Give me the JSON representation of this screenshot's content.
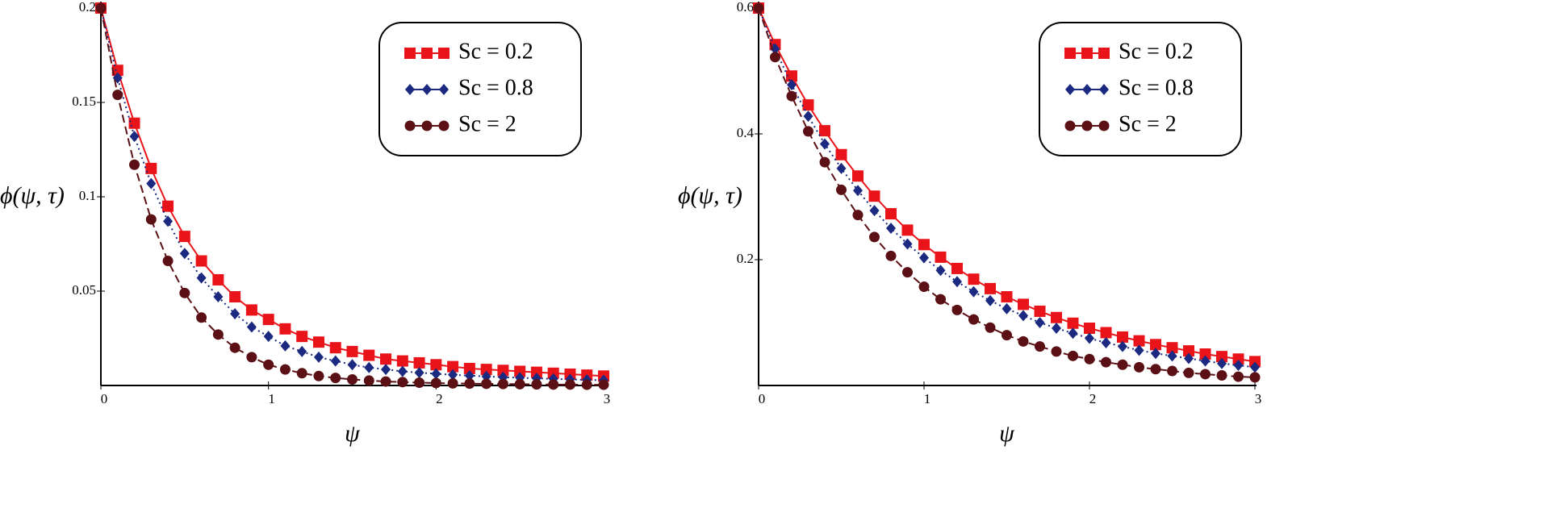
{
  "chart_data": [
    {
      "type": "line",
      "xlabel": "ψ",
      "ylabel": "ϕ(ψ, τ)",
      "xlim": [
        0,
        3
      ],
      "ylim": [
        0,
        0.2
      ],
      "xticks": [
        0,
        1,
        2,
        3
      ],
      "yticks": [
        0.05,
        0.1,
        0.15,
        0.2
      ],
      "legend": "upper right",
      "x": [
        0,
        0.1,
        0.2,
        0.3,
        0.4,
        0.5,
        0.6,
        0.7,
        0.8,
        0.9,
        1,
        1.1,
        1.2,
        1.3,
        1.4,
        1.5,
        1.6,
        1.7,
        1.8,
        1.9,
        2,
        2.1,
        2.2,
        2.3,
        2.4,
        2.5,
        2.6,
        2.7,
        2.8,
        2.9,
        3
      ],
      "series": [
        {
          "name": "Sc = 0.2",
          "color": "#e8141a",
          "marker": "square",
          "line_style": "solid",
          "values": [
            0.2,
            0.167,
            0.139,
            0.115,
            0.095,
            0.079,
            0.066,
            0.056,
            0.047,
            0.04,
            0.035,
            0.03,
            0.026,
            0.023,
            0.02,
            0.018,
            0.016,
            0.014,
            0.013,
            0.012,
            0.011,
            0.01,
            0.009,
            0.0085,
            0.008,
            0.0075,
            0.007,
            0.0065,
            0.006,
            0.0055,
            0.005
          ]
        },
        {
          "name": "Sc = 0.8",
          "color": "#1b2a80",
          "marker": "diamond",
          "line_style": "dotted",
          "values": [
            0.2,
            0.163,
            0.132,
            0.107,
            0.087,
            0.07,
            0.057,
            0.047,
            0.038,
            0.031,
            0.026,
            0.021,
            0.018,
            0.015,
            0.013,
            0.011,
            0.0095,
            0.0085,
            0.0075,
            0.0068,
            0.0062,
            0.0057,
            0.0052,
            0.0048,
            0.0044,
            0.0041,
            0.0038,
            0.0035,
            0.0032,
            0.003,
            0.0028
          ]
        },
        {
          "name": "Sc = 2",
          "color": "#5a1014",
          "marker": "circle",
          "line_style": "dashed",
          "values": [
            0.2,
            0.154,
            0.117,
            0.088,
            0.066,
            0.049,
            0.036,
            0.027,
            0.02,
            0.015,
            0.011,
            0.0085,
            0.0065,
            0.005,
            0.004,
            0.0032,
            0.0026,
            0.0021,
            0.0018,
            0.0015,
            0.0013,
            0.0011,
            0.001,
            0.0009,
            0.0008,
            0.0007,
            0.0006,
            0.0005,
            0.0005,
            0.0004,
            0.0004
          ]
        }
      ]
    },
    {
      "type": "line",
      "xlabel": "ψ",
      "ylabel": "ϕ(ψ, τ)",
      "xlim": [
        0,
        3
      ],
      "ylim": [
        0,
        0.6
      ],
      "xticks": [
        0,
        1,
        2,
        3
      ],
      "yticks": [
        0.2,
        0.4,
        0.6
      ],
      "legend": "upper right",
      "x": [
        0,
        0.1,
        0.2,
        0.3,
        0.4,
        0.5,
        0.6,
        0.7,
        0.8,
        0.9,
        1,
        1.1,
        1.2,
        1.3,
        1.4,
        1.5,
        1.6,
        1.7,
        1.8,
        1.9,
        2,
        2.1,
        2.2,
        2.3,
        2.4,
        2.5,
        2.6,
        2.7,
        2.8,
        2.9,
        3
      ],
      "series": [
        {
          "name": "Sc = 0.2",
          "color": "#e8141a",
          "marker": "square",
          "line_style": "solid",
          "values": [
            0.6,
            0.542,
            0.492,
            0.446,
            0.405,
            0.367,
            0.333,
            0.301,
            0.273,
            0.247,
            0.224,
            0.204,
            0.186,
            0.169,
            0.154,
            0.141,
            0.129,
            0.118,
            0.108,
            0.099,
            0.091,
            0.084,
            0.077,
            0.071,
            0.065,
            0.06,
            0.055,
            0.05,
            0.046,
            0.042,
            0.038
          ]
        },
        {
          "name": "Sc = 0.8",
          "color": "#1b2a80",
          "marker": "diamond",
          "line_style": "dotted",
          "values": [
            0.6,
            0.535,
            0.478,
            0.428,
            0.384,
            0.345,
            0.31,
            0.278,
            0.25,
            0.225,
            0.203,
            0.183,
            0.165,
            0.149,
            0.135,
            0.122,
            0.111,
            0.1,
            0.091,
            0.083,
            0.075,
            0.068,
            0.062,
            0.056,
            0.051,
            0.047,
            0.043,
            0.039,
            0.035,
            0.032,
            0.029
          ]
        },
        {
          "name": "Sc = 2",
          "color": "#5a1014",
          "marker": "circle",
          "line_style": "dashed",
          "values": [
            0.6,
            0.522,
            0.46,
            0.404,
            0.355,
            0.311,
            0.271,
            0.236,
            0.206,
            0.18,
            0.157,
            0.137,
            0.12,
            0.105,
            0.092,
            0.08,
            0.07,
            0.062,
            0.054,
            0.047,
            0.042,
            0.037,
            0.033,
            0.029,
            0.026,
            0.023,
            0.02,
            0.018,
            0.016,
            0.014,
            0.013
          ]
        }
      ]
    }
  ]
}
